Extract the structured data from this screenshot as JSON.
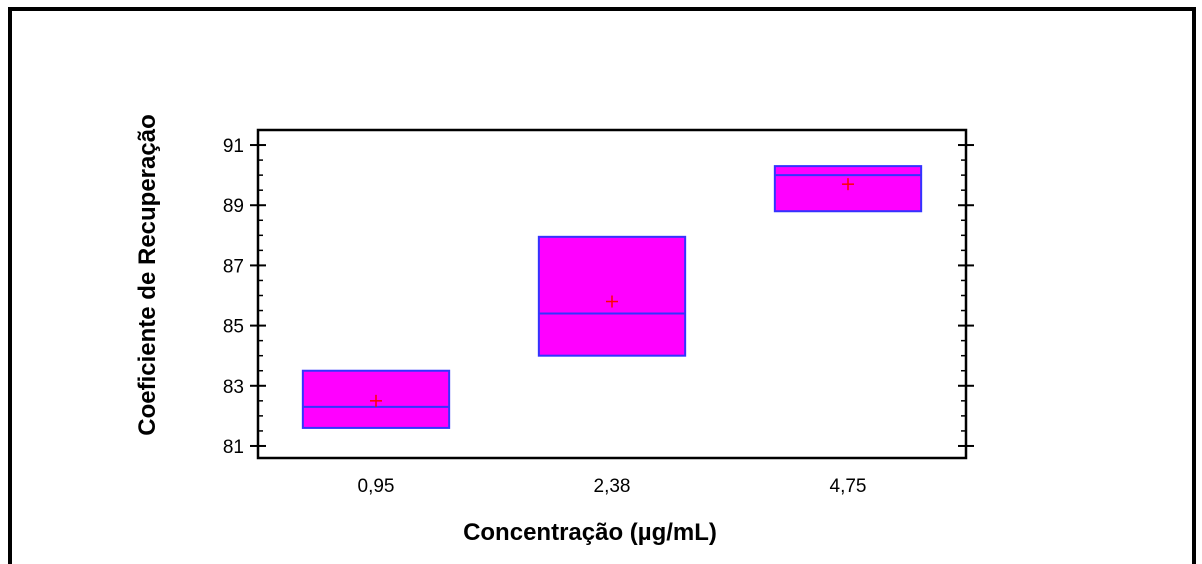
{
  "chart_data": {
    "type": "box",
    "xlabel": "Concentração (µg/mL)",
    "ylabel": "Coeficiente de Recuperação",
    "categories": [
      "0,95",
      "2,38",
      "4,75"
    ],
    "ylim": [
      80.6,
      91.5
    ],
    "yticks": [
      "81",
      "83",
      "85",
      "87",
      "89",
      "91"
    ],
    "boxes": [
      {
        "category": "0,95",
        "q1": 81.6,
        "median": 82.3,
        "q3": 83.5,
        "mean": 82.5
      },
      {
        "category": "2,38",
        "q1": 84.0,
        "median": 85.4,
        "q3": 87.95,
        "mean": 85.8
      },
      {
        "category": "4,75",
        "q1": 88.8,
        "median": 90.0,
        "q3": 90.3,
        "mean": 89.7
      }
    ],
    "grid": false,
    "colors": {
      "box_fill": "#ff00ff",
      "box_edge": "#3333ff",
      "mean_marker": "#ff0000"
    }
  }
}
